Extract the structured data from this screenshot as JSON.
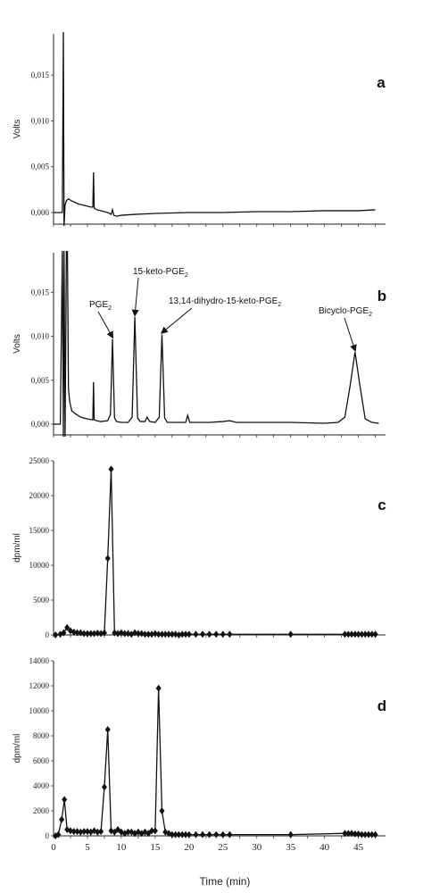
{
  "figure": {
    "xlabel": "Time (min)"
  },
  "chart_data": [
    {
      "id": "a",
      "type": "line",
      "panel_letter": "a",
      "ylabel": "Volts",
      "ylim": [
        -0.0015,
        0.0195
      ],
      "yticks": [
        0.0,
        0.005,
        0.01,
        0.015
      ],
      "ytick_labels": [
        "0,000",
        "0,005",
        "0,010",
        "0,015"
      ],
      "xlim": [
        0,
        49
      ],
      "series": [
        {
          "x": [
            0,
            0.6,
            1.0,
            1.3,
            1.45,
            1.55,
            1.7,
            1.9,
            2.2,
            2.6,
            3.2,
            3.8,
            4.4,
            5.0,
            5.5,
            5.8,
            5.9,
            6.0,
            6.15,
            6.4,
            7.0,
            8.0,
            8.5,
            8.7,
            8.9,
            9.3,
            10,
            12,
            15,
            20,
            25,
            30,
            35,
            40,
            45,
            47.5
          ],
          "y": [
            0,
            0,
            0,
            0,
            0.02,
            -0.0015,
            0.0008,
            0.0013,
            0.0015,
            0.0013,
            0.0011,
            0.0009,
            0.0008,
            0.0007,
            0.0006,
            0.0006,
            0.0044,
            0.0005,
            0.0004,
            0.0003,
            0.0002,
            0.0,
            -0.0002,
            0.0003,
            -0.0003,
            -0.0004,
            -0.0003,
            -0.0002,
            -0.0001,
            0.0,
            0.0,
            0.0001,
            0.0001,
            0.0002,
            0.0002,
            0.0003
          ]
        }
      ]
    },
    {
      "id": "b",
      "type": "line",
      "panel_letter": "b",
      "ylabel": "Volts",
      "ylim": [
        -0.0015,
        0.0195
      ],
      "yticks": [
        0.0,
        0.005,
        0.01,
        0.015
      ],
      "ytick_labels": [
        "0,000",
        "0,005",
        "0,010",
        "0,015"
      ],
      "xlim": [
        0,
        49
      ],
      "annotations": [
        {
          "text": "PGE",
          "sub": "2",
          "x": 8.7,
          "y": 0.0097
        },
        {
          "text": "15-keto-PGE",
          "sub": "2",
          "x": 12.0,
          "y": 0.0122
        },
        {
          "text": "13,14-dihydro-15-keto-PGE",
          "sub": "2",
          "x": 16.0,
          "y": 0.0102
        },
        {
          "text": "Bicyclo-PGE",
          "sub": "2",
          "x": 44.5,
          "y": 0.0082
        }
      ],
      "series": [
        {
          "x": [
            0,
            1.0,
            1.3,
            1.45,
            1.55,
            1.7,
            1.9,
            2.05,
            2.2,
            2.4,
            2.7,
            3.2,
            4,
            5,
            5.8,
            5.9,
            6.0,
            6.3,
            7,
            8,
            8.4,
            8.7,
            9.0,
            9.3,
            10,
            11,
            11.6,
            12.0,
            12.4,
            12.8,
            13.5,
            13.8,
            14.2,
            15,
            15.6,
            16.0,
            16.4,
            16.8,
            18,
            19.5,
            19.8,
            20.1,
            21,
            23,
            25,
            26,
            27,
            30,
            35,
            40,
            42,
            43,
            43.8,
            44.5,
            45.2,
            46,
            47,
            48
          ],
          "y": [
            0,
            0,
            0.02,
            -0.0015,
            0.02,
            -0.0015,
            0.02,
            0.02,
            0.004,
            0.0025,
            0.0015,
            0.0012,
            0.0008,
            0.0006,
            0.0005,
            0.0048,
            0.0005,
            0.0004,
            0.0003,
            0.0004,
            0.0011,
            0.0097,
            0.0007,
            0.0003,
            0.0002,
            0.0002,
            0.0008,
            0.0122,
            0.0007,
            0.0003,
            0.0003,
            0.0008,
            0.0003,
            0.0002,
            0.0008,
            0.0102,
            0.0007,
            0.0002,
            0.0002,
            0.0002,
            0.001,
            0.0002,
            0.0002,
            0.0002,
            0.0003,
            0.0004,
            0.0002,
            0.0002,
            0.0002,
            0.0001,
            0.0002,
            0.0008,
            0.0045,
            0.0082,
            0.0045,
            0.0006,
            0.0002,
            0.0001
          ]
        }
      ]
    },
    {
      "id": "c",
      "type": "line",
      "panel_letter": "c",
      "ylabel": "dpm/ml",
      "ylim": [
        0,
        25000
      ],
      "yticks": [
        0,
        5000,
        10000,
        15000,
        20000,
        25000
      ],
      "ytick_labels": [
        "0",
        "5000",
        "10000",
        "15000",
        "20000",
        "25000"
      ],
      "xlim": [
        0,
        49
      ],
      "markers": true,
      "series": [
        {
          "x": [
            0.3,
            1,
            1.5,
            2,
            2.5,
            3,
            3.5,
            4,
            4.5,
            5,
            5.5,
            6,
            6.5,
            7,
            7.5,
            8,
            8.5,
            9,
            9.5,
            10,
            10.5,
            11,
            11.5,
            12,
            12.5,
            13,
            13.5,
            14,
            14.5,
            15,
            15.5,
            16,
            16.5,
            17,
            17.5,
            18,
            18.5,
            19,
            19.5,
            20,
            21,
            22,
            23,
            24,
            25,
            26,
            35,
            43,
            43.5,
            44,
            44.5,
            45,
            45.5,
            46,
            46.5,
            47,
            47.5
          ],
          "y": [
            0,
            100,
            300,
            1050,
            600,
            400,
            300,
            300,
            200,
            200,
            200,
            200,
            250,
            200,
            300,
            11000,
            23800,
            300,
            200,
            300,
            200,
            200,
            100,
            300,
            200,
            200,
            100,
            100,
            100,
            200,
            100,
            100,
            100,
            100,
            100,
            100,
            0,
            100,
            100,
            100,
            100,
            100,
            100,
            100,
            100,
            100,
            100,
            100,
            100,
            100,
            100,
            100,
            100,
            100,
            100,
            100,
            100
          ]
        }
      ]
    },
    {
      "id": "d",
      "type": "line",
      "panel_letter": "d",
      "ylabel": "dpm/ml",
      "ylim": [
        0,
        14000
      ],
      "yticks": [
        0,
        2000,
        4000,
        6000,
        8000,
        10000,
        12000,
        14000
      ],
      "ytick_labels": [
        "0",
        "2000",
        "4000",
        "6000",
        "8000",
        "10000",
        "12000",
        "14000"
      ],
      "xlim": [
        0,
        49
      ],
      "xticks": [
        0,
        5,
        10,
        15,
        20,
        25,
        30,
        35,
        40,
        45
      ],
      "xtick_labels": [
        "0",
        "5",
        "10",
        "15",
        "20",
        "25",
        "30",
        "35",
        "40",
        "45"
      ],
      "markers": true,
      "series": [
        {
          "x": [
            0.3,
            0.7,
            1.2,
            1.6,
            2.0,
            2.5,
            3,
            3.5,
            4,
            4.5,
            5,
            5.5,
            6,
            6.5,
            7,
            7.5,
            8,
            8.5,
            9,
            9.5,
            10,
            10.5,
            11,
            11.5,
            12,
            12.5,
            13,
            13.5,
            14,
            14.5,
            15,
            15.5,
            16,
            16.5,
            17,
            17.5,
            18,
            18.5,
            19,
            19.5,
            20,
            21,
            22,
            23,
            24,
            25,
            26,
            35,
            43,
            43.5,
            44,
            44.5,
            45,
            45.5,
            46,
            46.5,
            47,
            47.5
          ],
          "y": [
            0,
            100,
            1300,
            2900,
            500,
            400,
            350,
            350,
            300,
            350,
            350,
            300,
            400,
            300,
            350,
            3900,
            8500,
            400,
            300,
            500,
            300,
            200,
            300,
            300,
            200,
            300,
            200,
            300,
            200,
            400,
            400,
            11800,
            2000,
            300,
            200,
            100,
            100,
            100,
            100,
            100,
            100,
            100,
            100,
            100,
            100,
            100,
            100,
            100,
            200,
            200,
            200,
            150,
            150,
            100,
            100,
            100,
            100,
            100
          ]
        }
      ]
    }
  ]
}
